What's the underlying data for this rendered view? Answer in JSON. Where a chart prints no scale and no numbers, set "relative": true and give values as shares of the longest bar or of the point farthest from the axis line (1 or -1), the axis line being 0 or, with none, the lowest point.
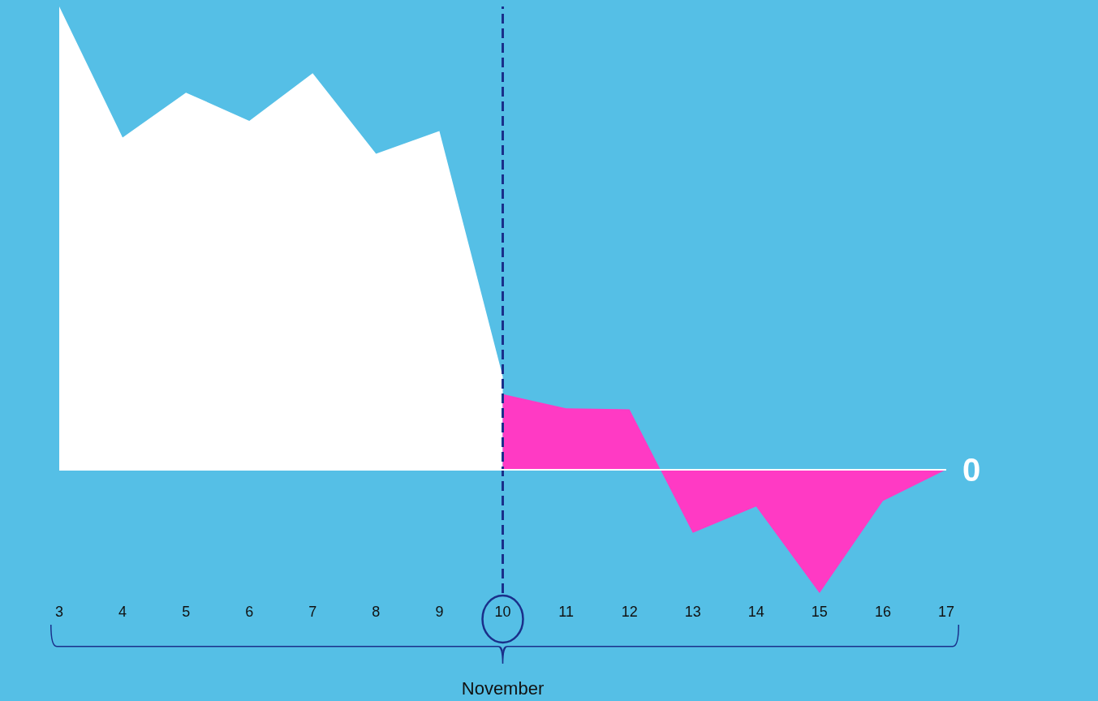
{
  "chart_data": {
    "type": "area",
    "relative": true,
    "xlabel": "November",
    "categories": [
      "3",
      "4",
      "5",
      "6",
      "7",
      "8",
      "9",
      "10",
      "11",
      "12",
      "13",
      "14",
      "15",
      "16",
      "17"
    ],
    "series": [
      {
        "color": "#ffffff",
        "values": [
          1,
          0.717,
          0.814,
          0.753,
          0.856,
          0.682,
          0.731,
          0.201,
          null,
          null,
          null,
          null,
          null,
          null,
          null
        ]
      },
      {
        "color": "#ff3ac4",
        "values": [
          null,
          null,
          null,
          null,
          null,
          null,
          null,
          0.163,
          0.132,
          0.13,
          -0.137,
          -0.08,
          -0.267,
          -0.068,
          0
        ]
      }
    ],
    "ref_lines": [
      {
        "axis": "x",
        "value": "10",
        "color": "#1a2f8a",
        "line_style": "dashed"
      },
      {
        "axis": "y",
        "value": 0,
        "label": "0",
        "color": "#ffffff",
        "line_style": "solid"
      }
    ],
    "grid": false
  }
}
